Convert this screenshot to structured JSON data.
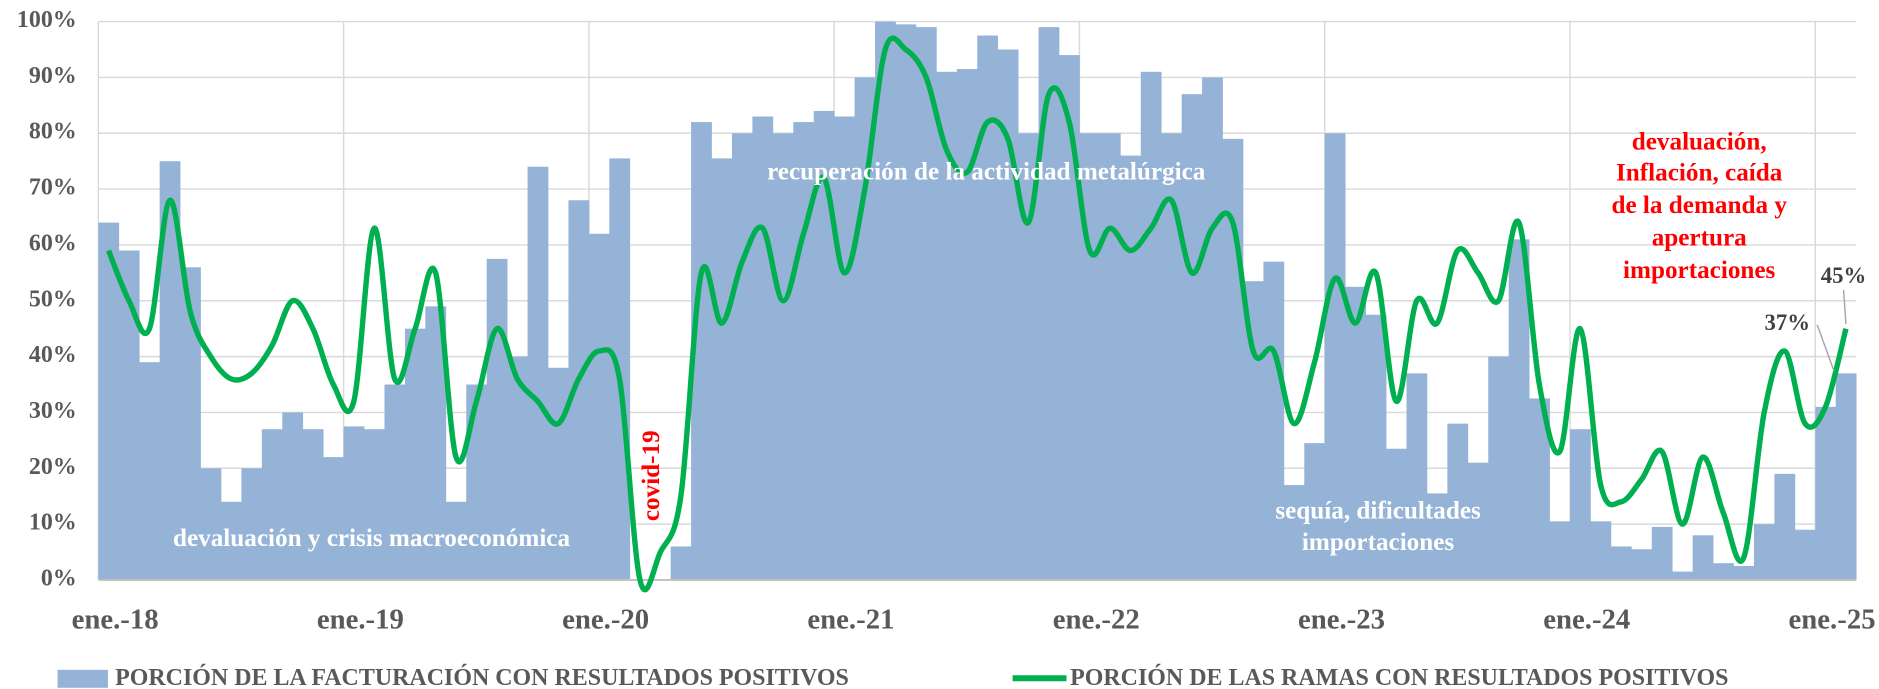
{
  "chart_data": {
    "type": "bar-line",
    "categories": [
      "ene.-18",
      null,
      null,
      null,
      null,
      null,
      null,
      null,
      null,
      null,
      null,
      null,
      "ene.-19",
      null,
      null,
      null,
      null,
      null,
      null,
      null,
      null,
      null,
      null,
      null,
      "ene.-20",
      null,
      null,
      null,
      null,
      null,
      null,
      null,
      null,
      null,
      null,
      null,
      "ene.-21",
      null,
      null,
      null,
      null,
      null,
      null,
      null,
      null,
      null,
      null,
      null,
      "ene.-22",
      null,
      null,
      null,
      null,
      null,
      null,
      null,
      null,
      null,
      null,
      null,
      "ene.-23",
      null,
      null,
      null,
      null,
      null,
      null,
      null,
      null,
      null,
      null,
      null,
      "ene.-24",
      null,
      null,
      null,
      null,
      null,
      null,
      null,
      null,
      null,
      null,
      null,
      "ene.-25",
      null
    ],
    "series": [
      {
        "name": "PORCIÓN DE LA FACTURACIÓN CON RESULTADOS POSITIVOS",
        "type": "bar",
        "color": "#95b3d7",
        "values": [
          64,
          59,
          39,
          75,
          56,
          20,
          14,
          20,
          27,
          30,
          27,
          22,
          27.5,
          27,
          35,
          45,
          49,
          14,
          35,
          57.5,
          40,
          74,
          38,
          68,
          62,
          75.5,
          0,
          0,
          6,
          82,
          75.5,
          80,
          83,
          80,
          82,
          84,
          83,
          90,
          100,
          99.5,
          99,
          91,
          91.5,
          97.5,
          95,
          80,
          99,
          94,
          80,
          80,
          76,
          91,
          80,
          87,
          90,
          79,
          53.5,
          57,
          17,
          24.5,
          80,
          52.5,
          47.5,
          23.5,
          37,
          15.5,
          28,
          21,
          40,
          61,
          32.5,
          10.5,
          27,
          10.5,
          6,
          5.5,
          9.5,
          1.5,
          8,
          3,
          2.5,
          10,
          19,
          9,
          31,
          37
        ],
        "value_labels": [
          null,
          null,
          null,
          null,
          null,
          null,
          null,
          null,
          null,
          null,
          null,
          null,
          null,
          null,
          null,
          null,
          null,
          null,
          null,
          null,
          null,
          null,
          null,
          null,
          null,
          null,
          null,
          null,
          null,
          null,
          null,
          null,
          null,
          null,
          null,
          null,
          null,
          null,
          null,
          null,
          null,
          null,
          null,
          null,
          null,
          null,
          null,
          null,
          null,
          null,
          null,
          null,
          null,
          null,
          null,
          null,
          null,
          null,
          null,
          null,
          null,
          null,
          null,
          null,
          null,
          null,
          null,
          null,
          null,
          null,
          null,
          null,
          null,
          null,
          null,
          null,
          null,
          null,
          null,
          null,
          null,
          null,
          null,
          null,
          null,
          "37%"
        ]
      },
      {
        "name": "PORCIÓN DE LAS RAMAS CON RESULTADOS POSITIVOS",
        "type": "line",
        "color": "#00b050",
        "values": [
          59,
          50,
          45,
          68,
          48,
          40,
          36,
          37,
          42,
          50,
          45,
          35,
          32,
          63,
          36,
          45,
          55,
          22,
          32,
          45,
          36,
          32,
          28,
          36,
          41,
          36,
          0,
          5,
          15,
          55,
          46,
          57,
          63,
          50,
          62,
          72,
          55,
          70,
          95,
          95,
          90,
          77,
          73,
          82,
          79,
          64,
          87,
          82,
          59,
          63,
          59,
          63,
          68,
          55,
          63,
          64,
          41,
          41,
          28,
          39,
          54,
          46,
          55,
          32,
          50,
          46,
          59,
          55,
          50,
          64,
          35,
          23,
          45,
          17,
          14,
          18,
          23,
          10,
          22,
          12,
          4,
          30,
          41,
          28,
          31,
          45
        ],
        "value_labels": [
          null,
          null,
          null,
          null,
          null,
          null,
          null,
          null,
          null,
          null,
          null,
          null,
          null,
          null,
          null,
          null,
          null,
          null,
          null,
          null,
          null,
          null,
          null,
          null,
          null,
          null,
          null,
          null,
          null,
          null,
          null,
          null,
          null,
          null,
          null,
          null,
          null,
          null,
          null,
          null,
          null,
          null,
          null,
          null,
          null,
          null,
          null,
          null,
          null,
          null,
          null,
          null,
          null,
          null,
          null,
          null,
          null,
          null,
          null,
          null,
          null,
          null,
          null,
          null,
          null,
          null,
          null,
          null,
          null,
          null,
          null,
          null,
          null,
          null,
          null,
          null,
          null,
          null,
          null,
          null,
          null,
          null,
          null,
          null,
          null,
          "45%"
        ]
      }
    ],
    "ylim": [
      0,
      100
    ],
    "yticks": [
      {
        "value": 0,
        "label": "0%"
      },
      {
        "value": 10,
        "label": "10%"
      },
      {
        "value": 20,
        "label": "20%"
      },
      {
        "value": 30,
        "label": "30%"
      },
      {
        "value": 40,
        "label": "40%"
      },
      {
        "value": 50,
        "label": "50%"
      },
      {
        "value": 60,
        "label": "60%"
      },
      {
        "value": 70,
        "label": "70%"
      },
      {
        "value": 80,
        "label": "80%"
      },
      {
        "value": 90,
        "label": "90%"
      },
      {
        "value": 100,
        "label": "100%"
      }
    ],
    "grid": true,
    "legend": "bottom",
    "annotations": {
      "crisis": "devaluación y crisis macroeconómica",
      "covid": "covid-19",
      "recovery": "recuperación de la actividad metalúrgica",
      "drought": [
        "sequía, dificultades",
        "importaciones"
      ],
      "recent": [
        "devaluación,",
        "Inflación, caída",
        "de la demanda y",
        "apertura",
        "importaciones"
      ]
    }
  }
}
